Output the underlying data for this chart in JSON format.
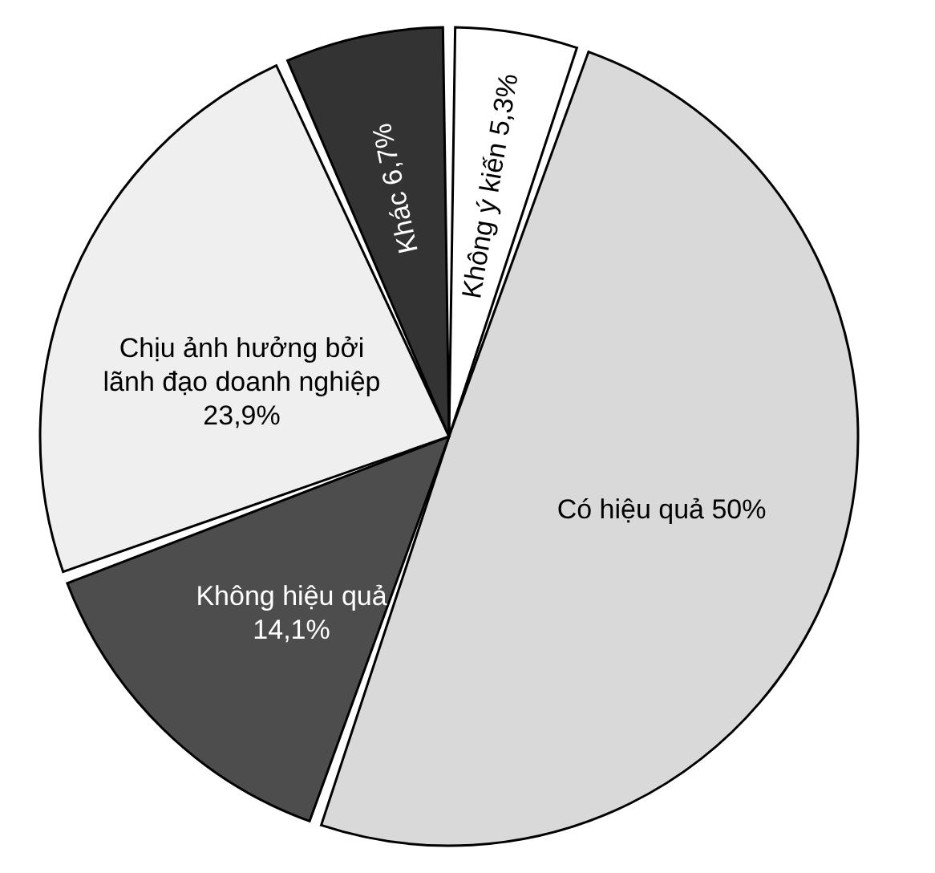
{
  "chart_data": {
    "type": "pie",
    "categories": [
      "Không ý kiến",
      "Có hiệu quả",
      "Không hiệu quả",
      "Chịu ảnh hưởng bởi lãnh đạo doanh nghiệp",
      "Khác"
    ],
    "values": [
      5.3,
      50,
      14.1,
      23.9,
      6.7
    ],
    "value_labels": [
      "5,3%",
      "50%",
      "14,1%",
      "23,9%",
      "6,7%"
    ],
    "colors": [
      "#ffffff",
      "#d9d9d9",
      "#4d4d4d",
      "#efefef",
      "#333333"
    ],
    "legend": false
  }
}
